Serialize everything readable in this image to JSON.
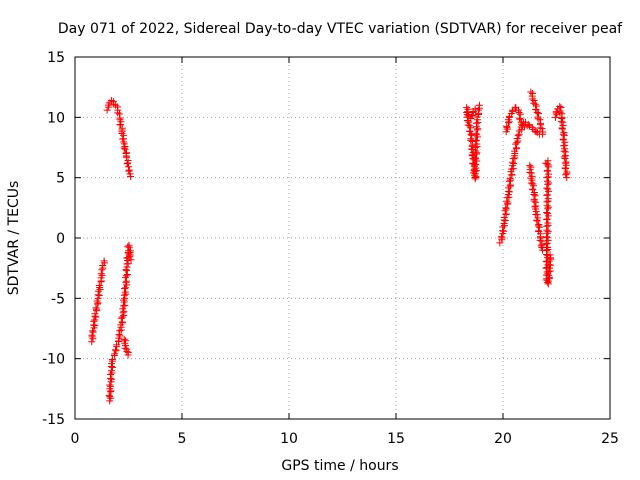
{
  "chart_data": {
    "type": "scatter",
    "title": "Day 071 of 2022, Sidereal Day-to-day VTEC variation (SDTVAR) for receiver peaf",
    "xlabel": "GPS time / hours",
    "ylabel": "SDTVAR / TECUs",
    "xlim": [
      0,
      25
    ],
    "ylim": [
      -15,
      15
    ],
    "xticks": [
      0,
      5,
      10,
      15,
      20,
      25
    ],
    "yticks": [
      -15,
      -10,
      -5,
      0,
      5,
      10,
      15
    ],
    "xtick_labels": [
      "0",
      "5",
      "10",
      "15",
      "20",
      "25"
    ],
    "ytick_labels": [
      "-15",
      "-10",
      "-5",
      "0",
      "5",
      "10",
      "15"
    ],
    "grid": true,
    "marker": "+",
    "series_color": "#ff0000",
    "series": [
      {
        "name": "SDTVAR",
        "segments": [
          [
            [
              0.78,
              -8.6
            ],
            [
              0.85,
              -7.8
            ],
            [
              0.92,
              -6.8
            ],
            [
              1.0,
              -5.9
            ],
            [
              1.08,
              -5.0
            ],
            [
              1.15,
              -4.1
            ],
            [
              1.22,
              -3.3
            ],
            [
              1.3,
              -2.5
            ],
            [
              1.36,
              -1.9
            ]
          ],
          [
            [
              1.5,
              10.6
            ],
            [
              1.6,
              11.2
            ],
            [
              1.7,
              11.4
            ],
            [
              1.8,
              11.3
            ],
            [
              1.9,
              11.0
            ],
            [
              2.0,
              10.6
            ],
            [
              2.1,
              9.8
            ],
            [
              2.2,
              8.8
            ],
            [
              2.3,
              7.8
            ],
            [
              2.4,
              6.8
            ],
            [
              2.5,
              5.9
            ],
            [
              2.6,
              5.1
            ]
          ],
          [
            [
              1.62,
              -13.5
            ],
            [
              1.66,
              -12.3
            ],
            [
              1.7,
              -11.0
            ],
            [
              1.75,
              -10.2
            ],
            [
              1.85,
              -9.6
            ],
            [
              1.95,
              -9.0
            ],
            [
              2.05,
              -8.3
            ],
            [
              2.15,
              -7.4
            ],
            [
              2.25,
              -6.2
            ],
            [
              2.32,
              -5.0
            ],
            [
              2.38,
              -3.7
            ],
            [
              2.43,
              -2.4
            ],
            [
              2.48,
              -1.2
            ],
            [
              2.52,
              -0.6
            ],
            [
              2.57,
              -1.2
            ],
            [
              2.62,
              -1.8
            ]
          ],
          [
            [
              2.3,
              -8.4
            ],
            [
              2.36,
              -8.9
            ],
            [
              2.42,
              -9.4
            ],
            [
              2.48,
              -9.7
            ]
          ],
          [
            [
              18.3,
              10.4
            ],
            [
              18.4,
              9.6
            ],
            [
              18.5,
              8.6
            ],
            [
              18.55,
              7.6
            ],
            [
              18.6,
              6.6
            ],
            [
              18.65,
              5.6
            ],
            [
              18.7,
              4.9
            ],
            [
              18.8,
              9.8
            ],
            [
              18.85,
              10.6
            ],
            [
              18.9,
              11.0
            ]
          ],
          [
            [
              18.3,
              10.8
            ],
            [
              18.4,
              10.1
            ],
            [
              18.5,
              9.9
            ],
            [
              18.6,
              10.4
            ],
            [
              18.7,
              10.7
            ]
          ],
          [
            [
              19.85,
              -0.4
            ],
            [
              19.95,
              0.0
            ],
            [
              20.05,
              1.2
            ],
            [
              20.15,
              2.4
            ],
            [
              20.25,
              3.6
            ],
            [
              20.35,
              4.8
            ],
            [
              20.45,
              6.0
            ],
            [
              20.55,
              7.0
            ],
            [
              20.65,
              7.9
            ],
            [
              20.75,
              8.6
            ],
            [
              20.85,
              9.2
            ],
            [
              20.95,
              9.6
            ],
            [
              21.05,
              9.6
            ]
          ],
          [
            [
              20.15,
              8.8
            ],
            [
              20.3,
              10.0
            ],
            [
              20.45,
              10.6
            ],
            [
              20.6,
              10.8
            ],
            [
              20.75,
              10.4
            ],
            [
              20.85,
              9.6
            ],
            [
              21.0,
              9.2
            ],
            [
              21.2,
              9.4
            ],
            [
              21.4,
              9.0
            ],
            [
              21.55,
              8.8
            ],
            [
              21.7,
              8.6
            ]
          ],
          [
            [
              21.3,
              12.1
            ],
            [
              21.45,
              11.4
            ],
            [
              21.6,
              10.4
            ],
            [
              21.75,
              9.4
            ],
            [
              21.85,
              8.6
            ]
          ],
          [
            [
              21.25,
              6.0
            ],
            [
              21.35,
              4.8
            ],
            [
              21.45,
              3.6
            ],
            [
              21.55,
              2.2
            ],
            [
              21.65,
              1.0
            ],
            [
              21.75,
              0.0
            ],
            [
              21.85,
              -1.0
            ]
          ],
          [
            [
              22.0,
              6.2
            ],
            [
              22.1,
              6.4
            ],
            [
              22.05,
              -3.5
            ],
            [
              22.12,
              -3.8
            ],
            [
              22.18,
              -2.5
            ],
            [
              22.2,
              -1.4
            ]
          ],
          [
            [
              22.45,
              10.0
            ],
            [
              22.55,
              10.7
            ],
            [
              22.65,
              10.9
            ],
            [
              22.75,
              9.9
            ],
            [
              22.82,
              8.6
            ],
            [
              22.88,
              7.4
            ],
            [
              22.92,
              6.2
            ],
            [
              22.98,
              5.0
            ]
          ]
        ]
      }
    ]
  }
}
